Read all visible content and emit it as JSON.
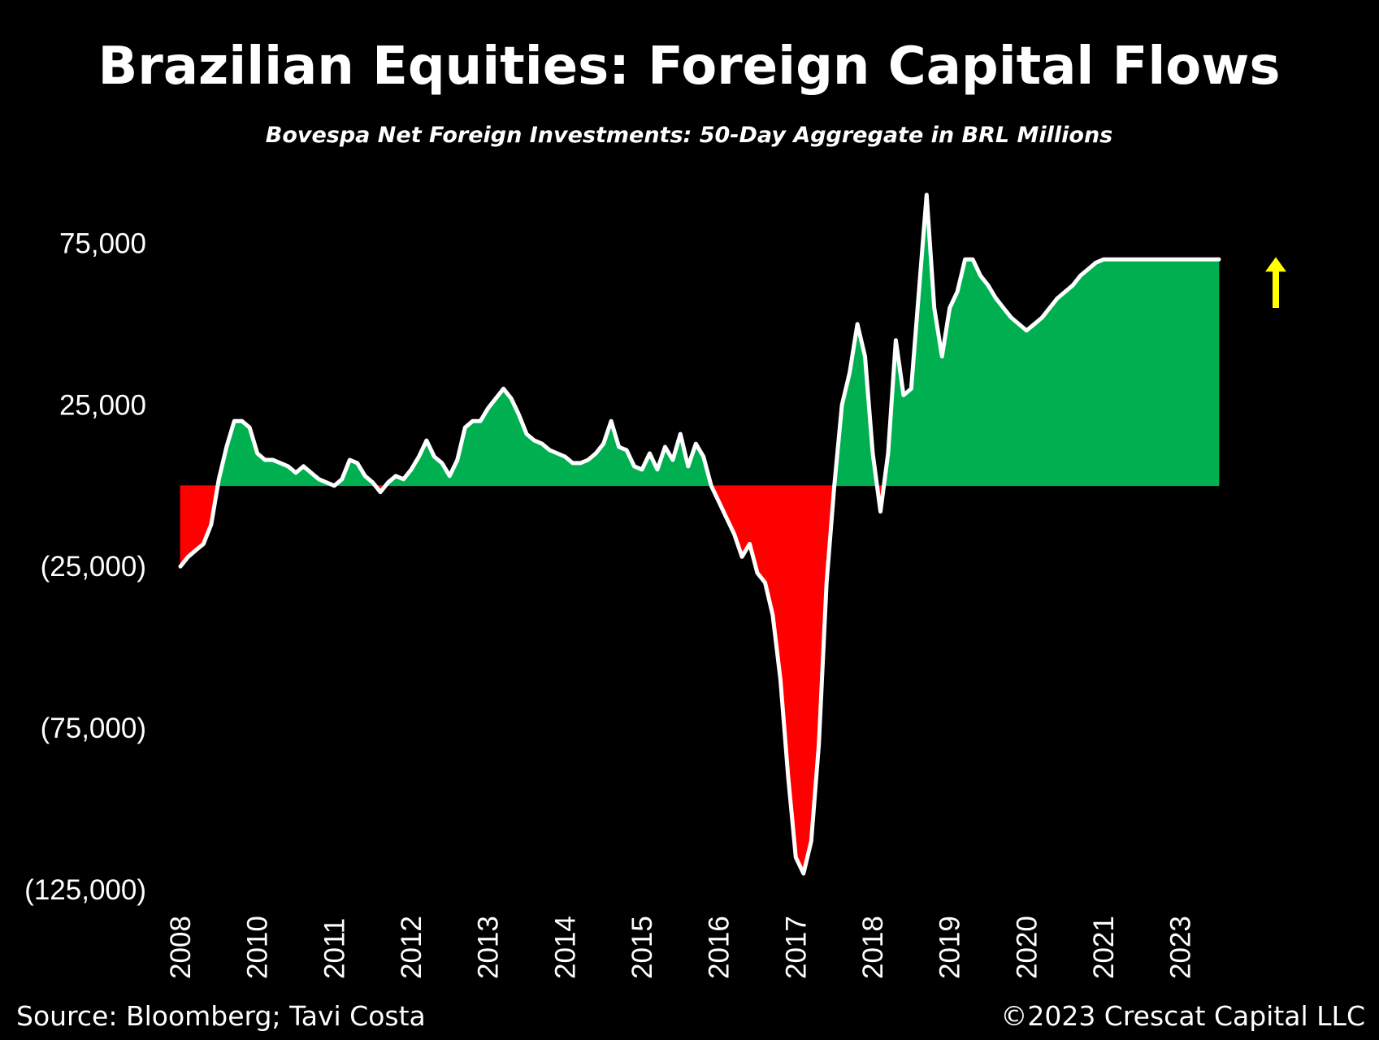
{
  "chart_data": {
    "type": "area",
    "title": "Brazilian Equities: Foreign Capital Flows",
    "subtitle": "Bovespa Net Foreign Investments: 50-Day Aggregate in BRL Millions",
    "source": "Source: Bloomberg; Tavi Costa",
    "copyright": "©2023 Crescat Capital LLC",
    "y_ticks": [
      {
        "value": 75000,
        "label": "75,000"
      },
      {
        "value": 25000,
        "label": "25,000"
      },
      {
        "value": -25000,
        "label": "(25,000)"
      },
      {
        "value": -75000,
        "label": "(75,000)"
      },
      {
        "value": -125000,
        "label": "(125,000)"
      }
    ],
    "ylim": [
      -125000,
      100000
    ],
    "x_ticks": [
      {
        "value": 2008.0,
        "label": "2008"
      },
      {
        "value": 2009.0,
        "label": "2010"
      },
      {
        "value": 2010.0,
        "label": "2011"
      },
      {
        "value": 2011.0,
        "label": "2012"
      },
      {
        "value": 2012.0,
        "label": "2013"
      },
      {
        "value": 2013.0,
        "label": "2014"
      },
      {
        "value": 2014.0,
        "label": "2015"
      },
      {
        "value": 2015.0,
        "label": "2016"
      },
      {
        "value": 2016.0,
        "label": "2017"
      },
      {
        "value": 2017.0,
        "label": "2018"
      },
      {
        "value": 2018.0,
        "label": "2019"
      },
      {
        "value": 2019.0,
        "label": "2020"
      },
      {
        "value": 2020.0,
        "label": "2021"
      },
      {
        "value": 2021.0,
        "label": "2023"
      }
    ],
    "xlim": [
      2008.0,
      2021.5
    ],
    "colors": {
      "positive": "#00b050",
      "negative": "#ff0000",
      "line": "#ffffff",
      "arrow": "#ffff00",
      "background": "#000000"
    },
    "arrow": {
      "direction": "up",
      "color": "#ffff00"
    },
    "series": [
      {
        "x": [
          2008.0,
          2008.1,
          2008.2,
          2008.3,
          2008.4,
          2008.5,
          2008.6,
          2008.7,
          2008.8,
          2008.9,
          2009.0,
          2009.1,
          2009.2,
          2009.3,
          2009.4,
          2009.5,
          2009.6,
          2009.7,
          2009.8,
          2009.9,
          2010.0,
          2010.1,
          2010.2,
          2010.3,
          2010.4,
          2010.5,
          2010.6,
          2010.7,
          2010.8,
          2010.9,
          2011.0,
          2011.1,
          2011.2,
          2011.3,
          2011.4,
          2011.5,
          2011.6,
          2011.7,
          2011.8,
          2011.9,
          2012.0,
          2012.1,
          2012.2,
          2012.3,
          2012.4,
          2012.5,
          2012.6,
          2012.7,
          2012.8,
          2012.9,
          2013.0,
          2013.1,
          2013.2,
          2013.3,
          2013.4,
          2013.5,
          2013.6,
          2013.7,
          2013.8,
          2013.9,
          2014.0,
          2014.1,
          2014.2,
          2014.3,
          2014.4,
          2014.5,
          2014.6,
          2014.7,
          2014.8,
          2014.9,
          2015.0,
          2015.1,
          2015.2,
          2015.3,
          2015.4,
          2015.5,
          2015.6,
          2015.7,
          2015.8,
          2015.9,
          2016.0,
          2016.1,
          2016.2,
          2016.3,
          2016.4,
          2016.5,
          2016.6,
          2016.7,
          2016.8,
          2016.9,
          2017.0,
          2017.1,
          2017.2,
          2017.3,
          2017.4,
          2017.5,
          2017.6,
          2017.7,
          2017.8,
          2017.9,
          2018.0,
          2018.1,
          2018.2,
          2018.3,
          2018.4,
          2018.5,
          2018.6,
          2018.7,
          2018.8,
          2018.9,
          2019.0,
          2019.1,
          2019.2,
          2019.3,
          2019.4,
          2019.5,
          2019.6,
          2019.7,
          2019.8,
          2019.9,
          2020.0,
          2020.1,
          2020.2,
          2020.3,
          2020.4,
          2020.5,
          2020.6,
          2020.7,
          2020.8,
          2020.9,
          2021.0,
          2021.1,
          2021.2,
          2021.3,
          2021.4,
          2021.5
        ],
        "values": [
          -25000,
          -22000,
          -20000,
          -18000,
          -12000,
          2000,
          12000,
          20000,
          20000,
          18000,
          10000,
          8000,
          8000,
          7000,
          6000,
          4000,
          6000,
          4000,
          2000,
          1000,
          0,
          2000,
          8000,
          7000,
          3000,
          1000,
          -2000,
          1000,
          3000,
          2000,
          5000,
          9000,
          14000,
          9000,
          7000,
          3000,
          8000,
          18000,
          20000,
          20000,
          24000,
          27000,
          30000,
          27000,
          22000,
          16000,
          14000,
          13000,
          11000,
          10000,
          9000,
          7000,
          7000,
          8000,
          10000,
          13000,
          20000,
          12000,
          11000,
          6000,
          5000,
          10000,
          5000,
          12000,
          8000,
          16000,
          6000,
          13000,
          9000,
          0,
          -5000,
          -10000,
          -15000,
          -22000,
          -18000,
          -27000,
          -30000,
          -40000,
          -60000,
          -90000,
          -115000,
          -120000,
          -110000,
          -80000,
          -30000,
          0,
          25000,
          35000,
          50000,
          40000,
          10000,
          -8000,
          10000,
          45000,
          28000,
          30000,
          60000,
          90000,
          55000,
          40000,
          55000,
          60000,
          70000,
          70000,
          65000,
          62000,
          58000,
          55000,
          52000,
          50000,
          48000,
          50000,
          52000,
          55000,
          58000,
          60000,
          62000,
          65000,
          67000,
          69000,
          70000,
          70000,
          70000,
          70000,
          70000,
          70000,
          70000,
          70000,
          70000,
          70000,
          70000,
          70000,
          70000,
          70000,
          70000,
          70000
        ]
      }
    ]
  }
}
